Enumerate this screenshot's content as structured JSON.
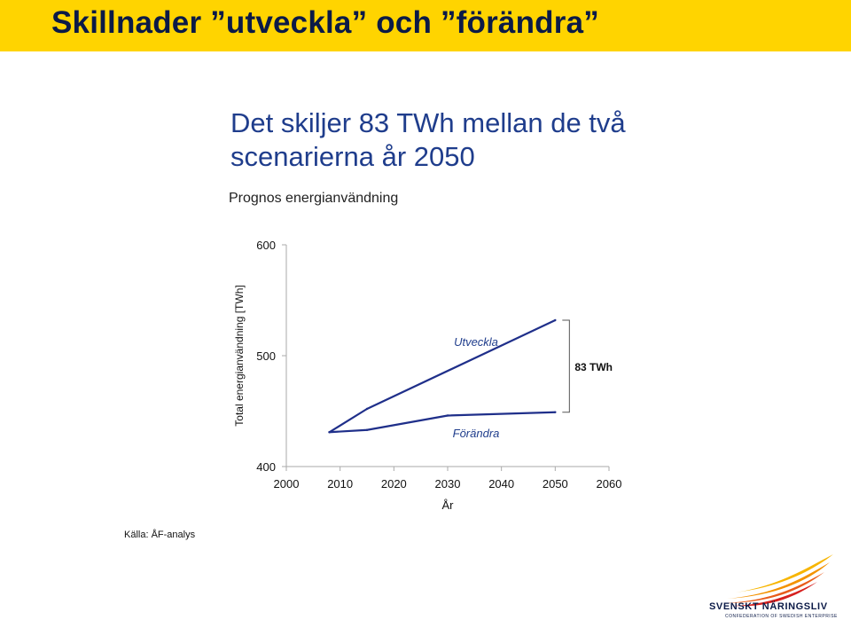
{
  "page": {
    "banner_title": "Skillnader ”utveckla” och ”förändra”",
    "headline": "Det skiljer 83 TWh mellan de två scenarierna år 2050",
    "source_note": "Källa: ÅF-analys",
    "logo": {
      "name": "SVENSKT NÄRINGSLIV",
      "subtitle": "CONFEDERATION OF SWEDISH ENTERPRISE"
    },
    "colors": {
      "banner": "#ffd400",
      "headline": "#1f3d8c",
      "series": "#1f2f8a",
      "axis": "#aaaaaa"
    }
  },
  "chart_data": {
    "type": "line",
    "title": "Prognos energianvändning",
    "xlabel": "År",
    "ylabel": "Total energianvändning [TWh]",
    "xlim": [
      2000,
      2060
    ],
    "ylim": [
      400,
      600
    ],
    "xticks": [
      2000,
      2010,
      2020,
      2030,
      2040,
      2050,
      2060
    ],
    "yticks": [
      400,
      500,
      600
    ],
    "grid": false,
    "series": [
      {
        "name": "Utveckla",
        "x": [
          2008,
          2015,
          2050
        ],
        "y": [
          431,
          452,
          532
        ]
      },
      {
        "name": "Förändra",
        "x": [
          2008,
          2015,
          2030,
          2050
        ],
        "y": [
          431,
          433,
          446,
          449
        ]
      }
    ],
    "annotations": [
      {
        "text": "83 TWh",
        "x": 2050,
        "y_from": 449,
        "y_to": 532
      }
    ]
  }
}
